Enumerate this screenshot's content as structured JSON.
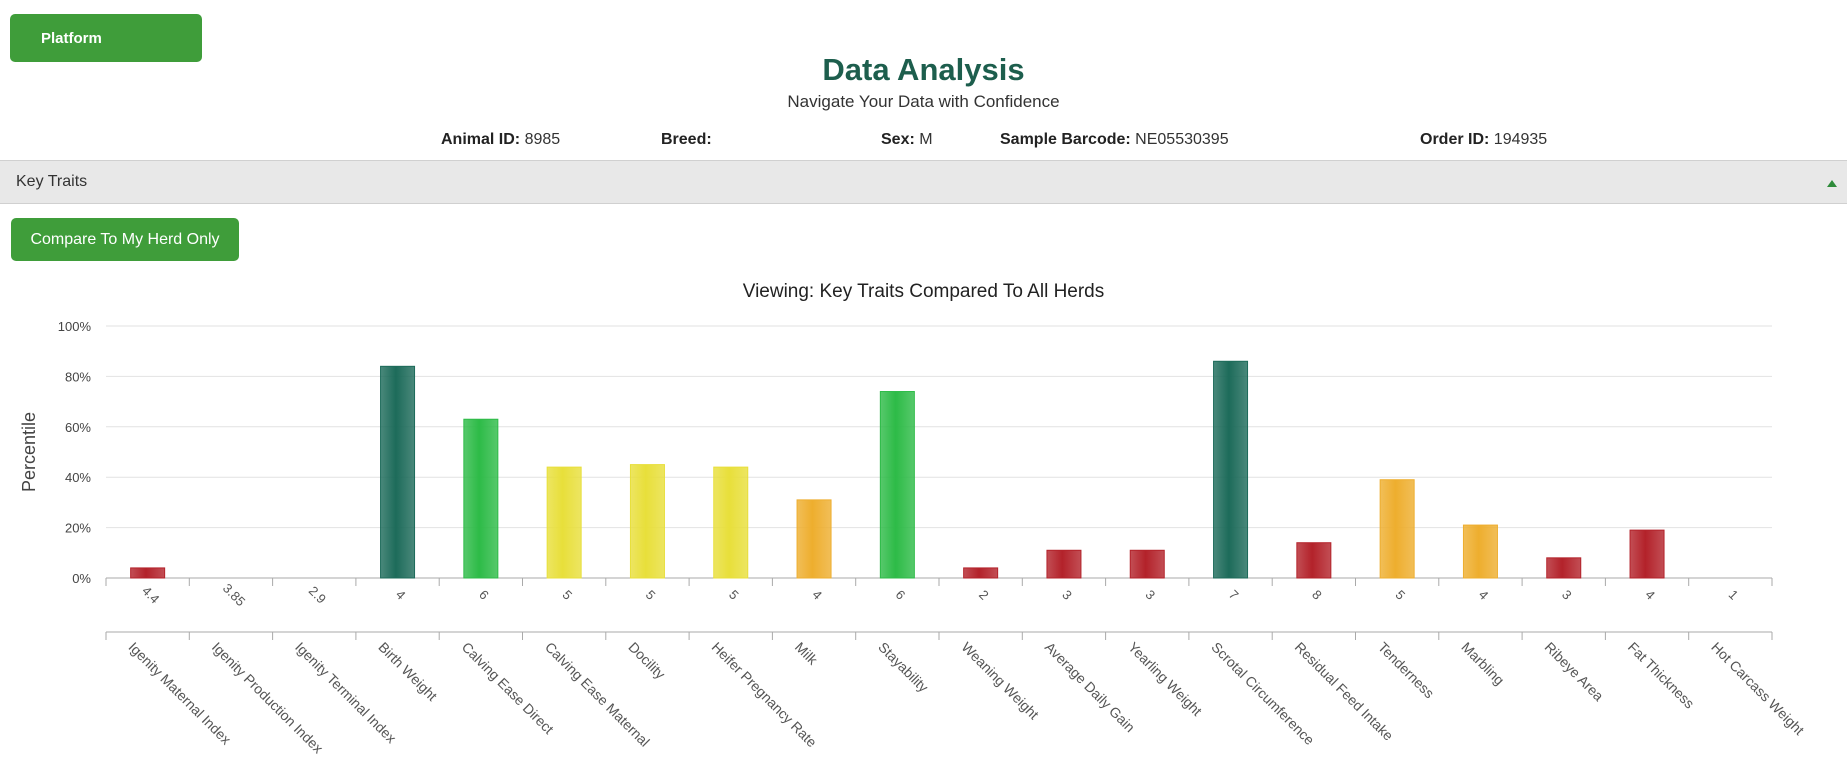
{
  "header": {
    "platform_label": "Platform",
    "title": "Data Analysis",
    "subtitle": "Navigate Your Data with Confidence"
  },
  "animal": {
    "animal_id_label": "Animal ID:",
    "animal_id": "8985",
    "breed_label": "Breed:",
    "breed": "",
    "sex_label": "Sex:",
    "sex": "M",
    "barcode_label": "Sample Barcode:",
    "barcode": "NE05530395",
    "order_label": "Order ID:",
    "order_id": "194935"
  },
  "section": {
    "label": "Key Traits",
    "compare_button": "Compare To My Herd Only"
  },
  "colors": {
    "dark_green": "#1d6b5a",
    "green": "#2dbb47",
    "yellow": "#e8df3a",
    "orange": "#eeae2e",
    "red": "#b3222a"
  },
  "chart_data": {
    "type": "bar",
    "title": "Viewing: Key Traits Compared To All Herds",
    "ylabel": "Percentile",
    "xlabel": "",
    "ylim": [
      0,
      100
    ],
    "yticks": [
      "0%",
      "20%",
      "40%",
      "60%",
      "80%",
      "100%"
    ],
    "categories": [
      "Igenity Maternal Index",
      "Igenity Production Index",
      "Igenity Terminal Index",
      "Birth Weight",
      "Calving Ease Direct",
      "Calving Ease Maternal",
      "Docility",
      "Heifer Pregnancy Rate",
      "Milk",
      "Stayability",
      "Weaning Weight",
      "Average Daily Gain",
      "Yearling Weight",
      "Scrotal Circumference",
      "Residual Feed Intake",
      "Tenderness",
      "Marbling",
      "Ribeye Area",
      "Fat Thickness",
      "Hot Carcass Weight"
    ],
    "scores": [
      "4.4",
      "3.85",
      "2.9",
      "4",
      "6",
      "5",
      "5",
      "5",
      "4",
      "6",
      "2",
      "3",
      "3",
      "7",
      "8",
      "5",
      "4",
      "3",
      "4",
      "1"
    ],
    "values": [
      4,
      0,
      0,
      84,
      63,
      44,
      45,
      44,
      31,
      74,
      4,
      11,
      11,
      86,
      14,
      39,
      21,
      8,
      19,
      0
    ],
    "bar_colors": [
      "red",
      "red",
      "red",
      "dark_green",
      "green",
      "yellow",
      "yellow",
      "yellow",
      "orange",
      "green",
      "red",
      "red",
      "red",
      "dark_green",
      "red",
      "orange",
      "orange",
      "red",
      "red",
      "red"
    ],
    "grid": true,
    "legend": "none"
  }
}
